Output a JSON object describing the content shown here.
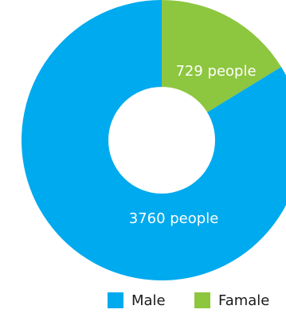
{
  "chart_data": {
    "type": "pie",
    "variant": "donut",
    "title": "",
    "series": [
      {
        "name": "Male",
        "value": 3760,
        "label": "3760 people",
        "color": "#00AAEE"
      },
      {
        "name": "Famale",
        "value": 729,
        "label": "729 people",
        "color": "#8DC63F"
      }
    ],
    "legend": {
      "position": "bottom-right"
    }
  }
}
